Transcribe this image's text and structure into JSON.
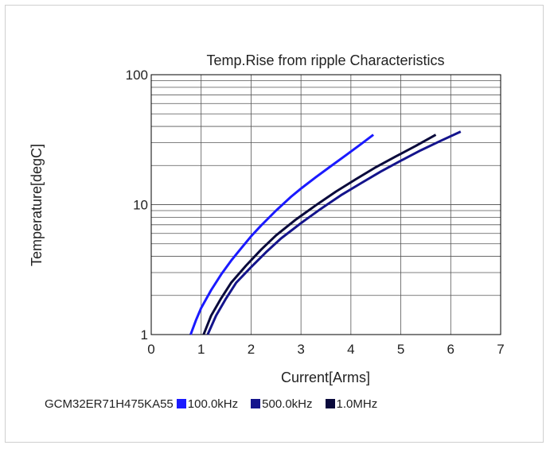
{
  "chart_data": {
    "type": "line",
    "title": "Temp.Rise from ripple Characteristics",
    "xlabel": "Current[Arms]",
    "ylabel": "Temperature[degC]",
    "xlim": [
      0,
      7
    ],
    "ylim": [
      1,
      100
    ],
    "yscale": "log",
    "grid": true,
    "x_ticks": [
      "0",
      "1",
      "2",
      "3",
      "4",
      "5",
      "6",
      "7"
    ],
    "y_ticks": [
      "1",
      "10",
      "100"
    ],
    "legend_title": "GCM32ER71H475KA55",
    "legend_position": "bottom",
    "series": [
      {
        "name": "100.0kHz",
        "color": "#1a1aff",
        "points": [
          [
            0.79,
            1.0
          ],
          [
            0.9,
            1.3
          ],
          [
            1.0,
            1.6
          ],
          [
            1.2,
            2.2
          ],
          [
            1.4,
            2.9
          ],
          [
            1.6,
            3.7
          ],
          [
            1.8,
            4.6
          ],
          [
            2.0,
            5.7
          ],
          [
            2.2,
            6.9
          ],
          [
            2.5,
            9.0
          ],
          [
            2.8,
            11.5
          ],
          [
            3.0,
            13.3
          ],
          [
            3.3,
            16.3
          ],
          [
            3.6,
            19.8
          ],
          [
            3.9,
            24.0
          ],
          [
            4.2,
            29.2
          ],
          [
            4.45,
            34.5
          ]
        ]
      },
      {
        "name": "500.0kHz",
        "color": "#14148c",
        "points": [
          [
            1.13,
            1.0
          ],
          [
            1.3,
            1.4
          ],
          [
            1.5,
            1.9
          ],
          [
            1.7,
            2.5
          ],
          [
            2.0,
            3.3
          ],
          [
            2.3,
            4.3
          ],
          [
            2.6,
            5.5
          ],
          [
            3.0,
            7.2
          ],
          [
            3.4,
            9.3
          ],
          [
            3.8,
            11.8
          ],
          [
            4.2,
            14.6
          ],
          [
            4.6,
            18.0
          ],
          [
            5.0,
            21.8
          ],
          [
            5.4,
            26.2
          ],
          [
            5.8,
            31.0
          ],
          [
            6.2,
            36.5
          ]
        ]
      },
      {
        "name": "1.0MHz",
        "color": "#0a0a3c",
        "points": [
          [
            1.05,
            1.0
          ],
          [
            1.2,
            1.4
          ],
          [
            1.4,
            1.9
          ],
          [
            1.6,
            2.5
          ],
          [
            1.9,
            3.4
          ],
          [
            2.2,
            4.5
          ],
          [
            2.5,
            5.8
          ],
          [
            2.9,
            7.7
          ],
          [
            3.3,
            9.9
          ],
          [
            3.7,
            12.6
          ],
          [
            4.1,
            15.7
          ],
          [
            4.5,
            19.4
          ],
          [
            4.9,
            23.5
          ],
          [
            5.3,
            28.3
          ],
          [
            5.7,
            34.5
          ]
        ]
      }
    ]
  }
}
